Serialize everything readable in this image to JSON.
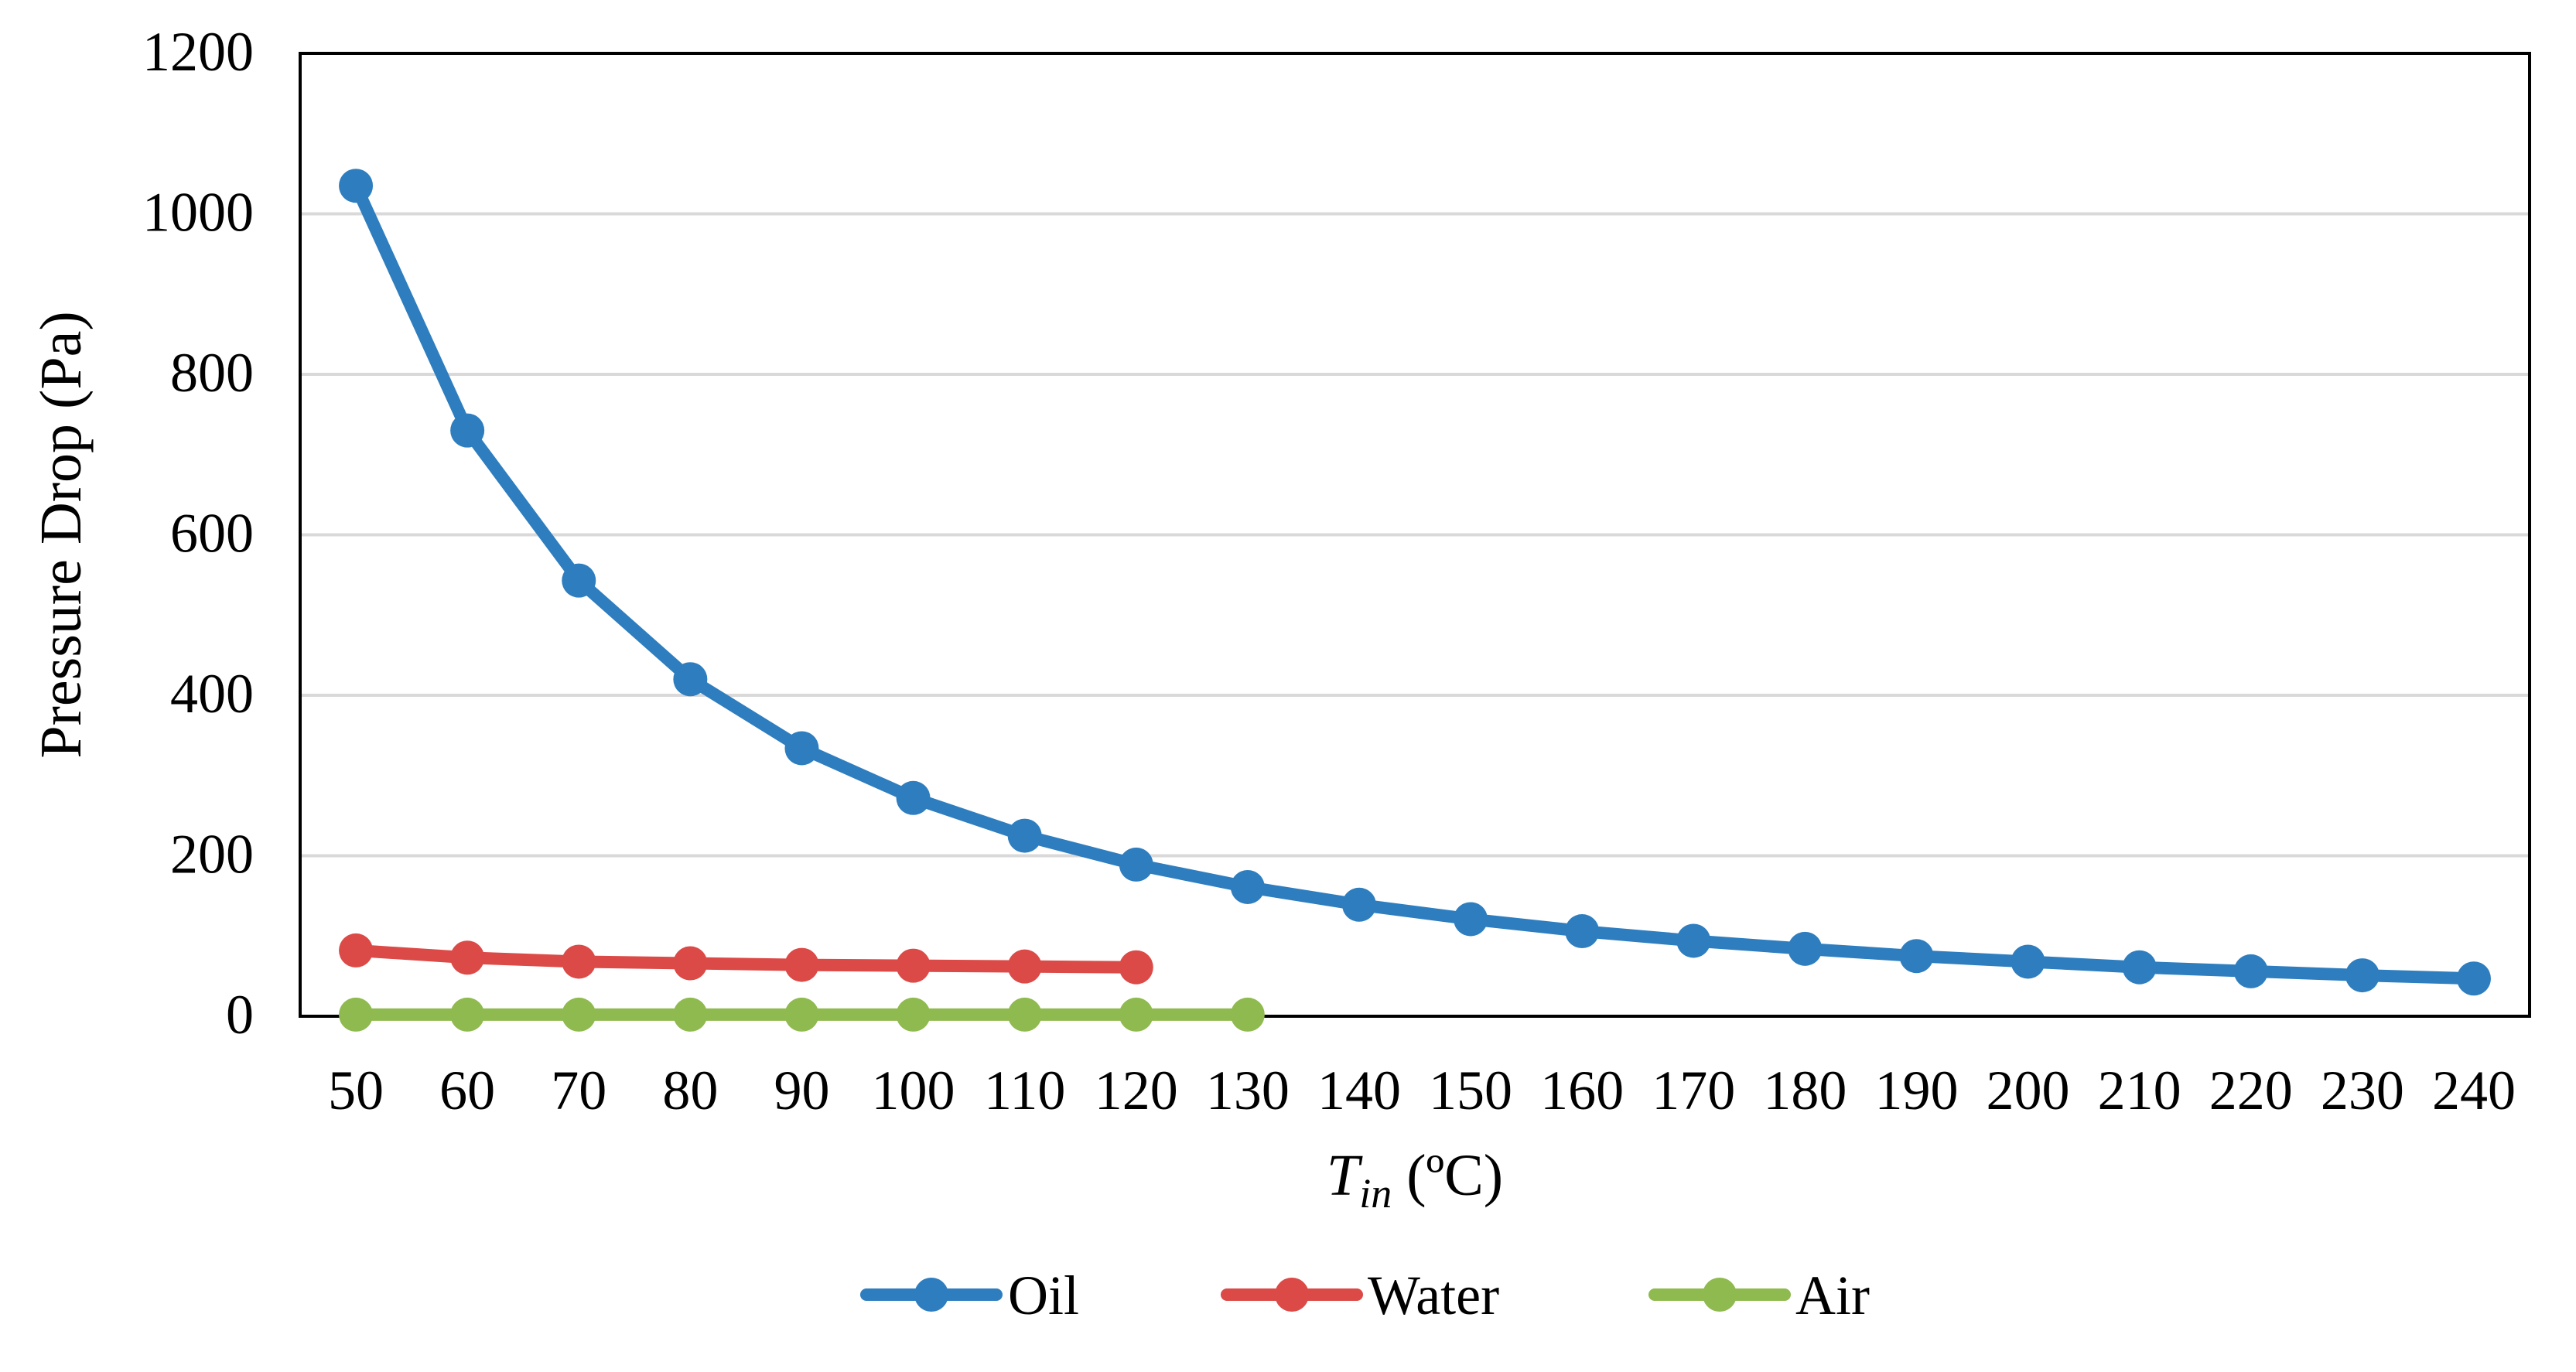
{
  "chart_data": {
    "type": "line",
    "title": "",
    "xlabel": {
      "main": "T",
      "sub": "in",
      "unit": " (ºC)"
    },
    "ylabel": "Pressure Drop (Pa)",
    "x": [
      50,
      60,
      70,
      80,
      90,
      100,
      110,
      120,
      130,
      140,
      150,
      160,
      170,
      180,
      190,
      200,
      210,
      220,
      230,
      240
    ],
    "x_tick_labels": [
      "50",
      "60",
      "70",
      "80",
      "90",
      "100",
      "110",
      "120",
      "130",
      "140",
      "150",
      "160",
      "170",
      "180",
      "190",
      "200",
      "210",
      "220",
      "230",
      "240"
    ],
    "y_ticks": [
      0,
      200,
      400,
      600,
      800,
      1000,
      1200
    ],
    "y_tick_labels": [
      "0",
      "200",
      "400",
      "600",
      "800",
      "1000",
      "1200"
    ],
    "ylim": [
      0,
      1200
    ],
    "grid": true,
    "legend_position": "bottom-center",
    "series": [
      {
        "name": "Oil",
        "color": "#2e7ebf",
        "values": [
          1035,
          730,
          543,
          420,
          334,
          272,
          225,
          189,
          161,
          139,
          121,
          106,
          94,
          84,
          75,
          68,
          61,
          56,
          51,
          47
        ]
      },
      {
        "name": "Water",
        "color": "#db4a47",
        "values": [
          82,
          73,
          68,
          66,
          64,
          63,
          62,
          61,
          null,
          null,
          null,
          null,
          null,
          null,
          null,
          null,
          null,
          null,
          null,
          null
        ]
      },
      {
        "name": "Air",
        "color": "#8fba4f",
        "values": [
          2,
          2,
          2,
          2,
          2,
          2,
          2,
          2,
          2,
          null,
          null,
          null,
          null,
          null,
          null,
          null,
          null,
          null,
          null,
          null
        ]
      }
    ]
  }
}
